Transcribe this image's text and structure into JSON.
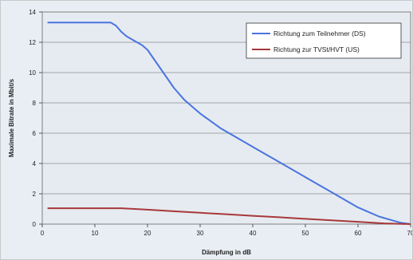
{
  "chart_data": {
    "type": "line",
    "xlabel": "Dämpfung in dB",
    "ylabel": "Maximale Bitrate in Mbit/s",
    "xlim": [
      0,
      70
    ],
    "ylim": [
      0,
      14
    ],
    "x_ticks": [
      0,
      10,
      20,
      30,
      40,
      50,
      60,
      70
    ],
    "y_ticks": [
      0,
      2,
      4,
      6,
      8,
      10,
      12,
      14
    ],
    "grid": "horizontal",
    "legend_position": "top-right",
    "series": [
      {
        "name": "Richtung zum Teilnehmer (DS)",
        "color": "#4a74e0",
        "x": [
          1,
          5,
          10,
          13,
          14,
          15,
          16,
          17,
          18,
          19,
          20,
          21,
          22,
          23,
          24,
          25,
          26,
          27,
          28,
          29,
          30,
          32,
          34,
          36,
          38,
          40,
          42,
          44,
          46,
          48,
          50,
          52,
          54,
          56,
          58,
          60,
          62,
          64,
          66,
          68,
          70
        ],
        "y": [
          13.3,
          13.3,
          13.3,
          13.3,
          13.1,
          12.7,
          12.4,
          12.2,
          12.0,
          11.8,
          11.5,
          11.0,
          10.5,
          10.0,
          9.5,
          9.0,
          8.6,
          8.2,
          7.9,
          7.6,
          7.3,
          6.8,
          6.3,
          5.9,
          5.5,
          5.1,
          4.7,
          4.3,
          3.9,
          3.5,
          3.1,
          2.7,
          2.3,
          1.9,
          1.5,
          1.1,
          0.8,
          0.5,
          0.3,
          0.1,
          0.0
        ]
      },
      {
        "name": "Richtung zur TVSt/HVT (US)",
        "color": "#a8383a",
        "x": [
          1,
          5,
          10,
          15,
          20,
          25,
          30,
          35,
          40,
          45,
          50,
          55,
          60,
          65,
          70
        ],
        "y": [
          1.05,
          1.05,
          1.05,
          1.05,
          0.95,
          0.85,
          0.75,
          0.65,
          0.55,
          0.45,
          0.35,
          0.25,
          0.15,
          0.05,
          0.0
        ]
      }
    ]
  }
}
